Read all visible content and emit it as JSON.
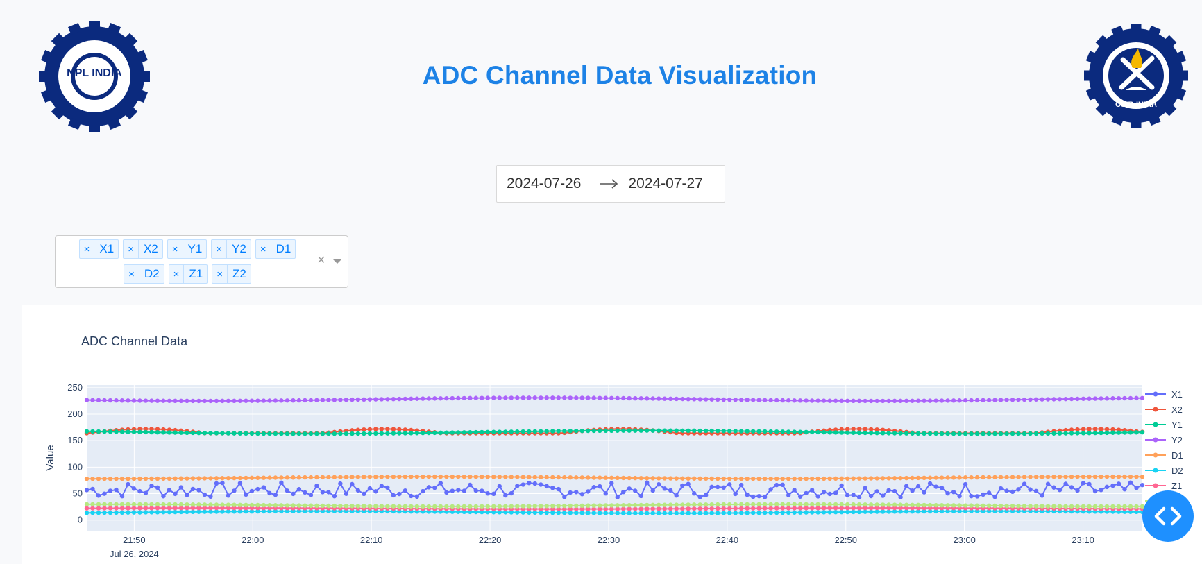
{
  "header": {
    "title": "ADC Channel Data Visualization",
    "logo_left": {
      "icon": "npl-india-logo-icon",
      "text": "NPL INDIA",
      "color": "#0b2a7e"
    },
    "logo_right": {
      "icon": "csir-india-logo-icon",
      "text": "CSIR-INDIA",
      "color": "#0b2a7e"
    }
  },
  "date_range": {
    "start": "2024-07-26",
    "end": "2024-07-27",
    "separator_icon": "arrow-right-icon"
  },
  "channel_select": {
    "selected": [
      "X1",
      "X2",
      "Y1",
      "Y2",
      "D1",
      "D2",
      "Z1",
      "Z2"
    ],
    "remove_glyph": "×",
    "clear_glyph": "×",
    "dropdown_icon": "caret-down-icon"
  },
  "chart_data": {
    "type": "line",
    "title": "ADC Channel Data",
    "xlabel": "",
    "ylabel": "Value",
    "x_start": "2024-07-26 21:46",
    "x_end": "2024-07-26 23:15",
    "x_ticks": [
      "21:50",
      "22:00",
      "22:10",
      "22:20",
      "22:30",
      "22:40",
      "22:50",
      "23:00",
      "23:10"
    ],
    "x_date_label": "Jul 26, 2024",
    "y_ticks": [
      "0",
      "50",
      "100",
      "150",
      "200",
      "250"
    ],
    "ylim": [
      -20,
      255
    ],
    "grid": true,
    "legend_position": "right",
    "series": [
      {
        "name": "X1",
        "color": "#636efa",
        "mean": 57,
        "amplitude": 14,
        "noise": true
      },
      {
        "name": "X2",
        "color": "#ef553b",
        "mean": 167,
        "amplitude": 8,
        "period_minutes": 20
      },
      {
        "name": "Y1",
        "color": "#00cc96",
        "mean": 166,
        "amplitude": 3
      },
      {
        "name": "Y2",
        "color": "#ab63fa",
        "mean": 228,
        "amplitude": 3
      },
      {
        "name": "D1",
        "color": "#ffa15a",
        "mean": 80,
        "amplitude": 2
      },
      {
        "name": "D2",
        "color": "#19d3f3",
        "mean": 15,
        "amplitude": 2
      },
      {
        "name": "Z1",
        "color": "#ff6692",
        "mean": 22,
        "amplitude": 1
      },
      {
        "name": "Z2",
        "color": "#b6e880",
        "mean": 28,
        "amplitude": 2
      }
    ]
  },
  "nav_button": {
    "icon": "code-chevrons-icon",
    "color": "#1e90ff"
  }
}
